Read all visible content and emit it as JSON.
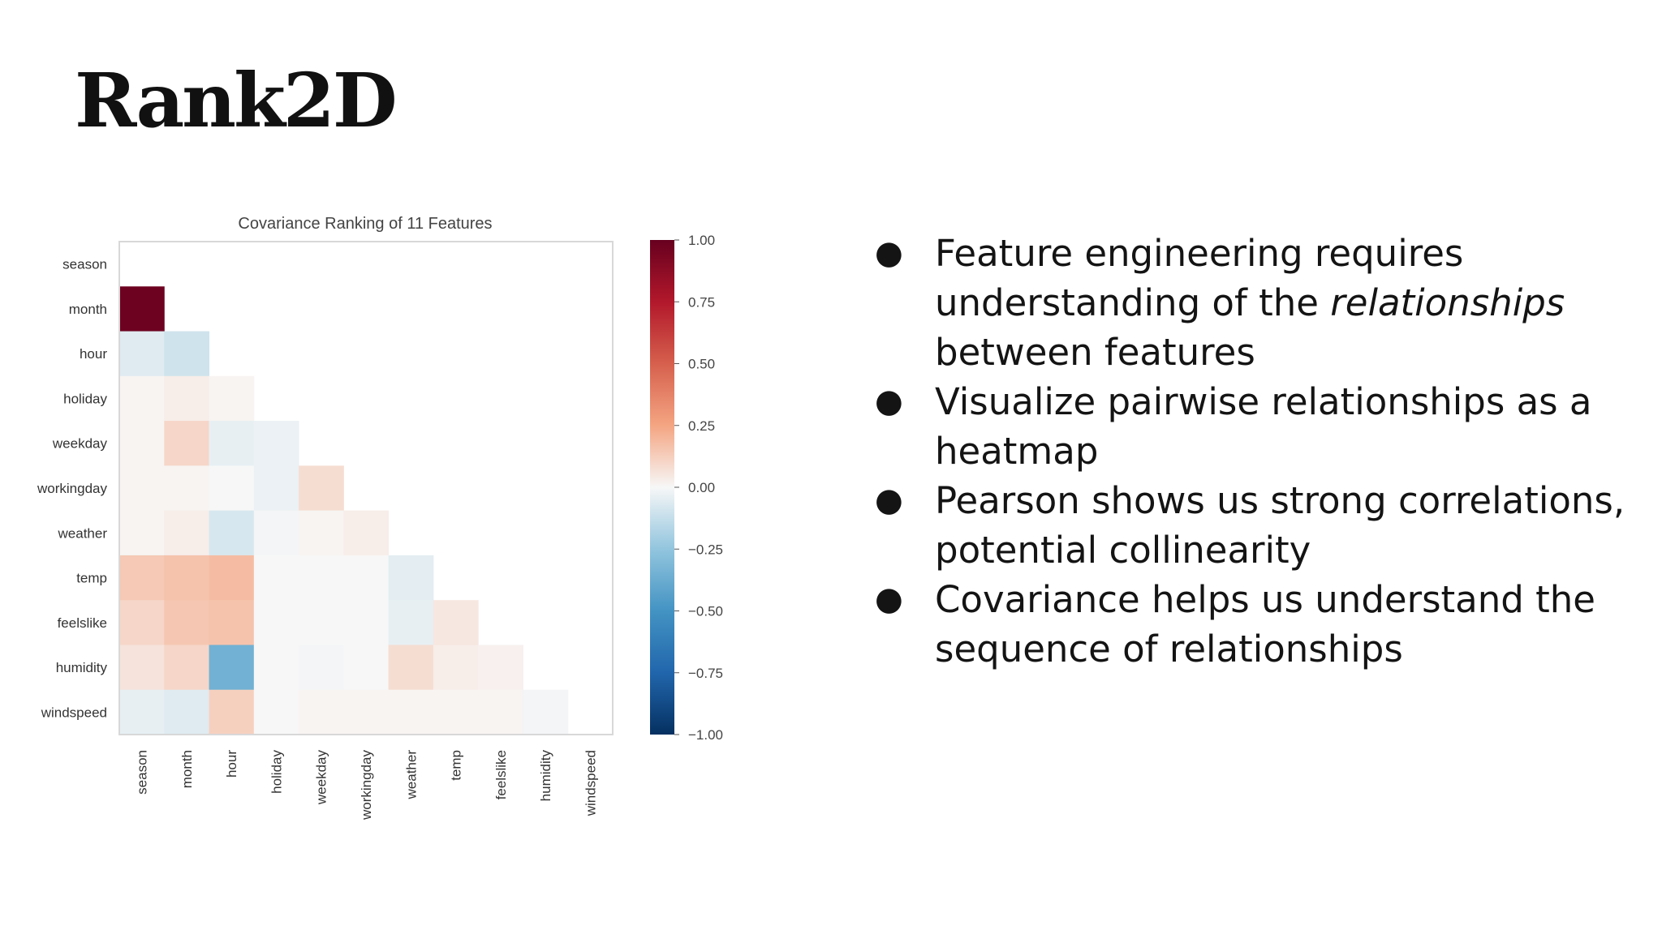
{
  "slide": {
    "title": "Rank2D"
  },
  "bullets": [
    {
      "pre": "Feature engineering requires understanding of the ",
      "em": "relationships",
      "post": " between features"
    },
    {
      "pre": "Visualize pairwise relationships as a heatmap",
      "em": "",
      "post": ""
    },
    {
      "pre": "Pearson shows us strong correlations, potential collinearity",
      "em": "",
      "post": ""
    },
    {
      "pre": "Covariance helps us understand the sequence of relationships",
      "em": "",
      "post": ""
    }
  ],
  "chart_data": {
    "type": "heatmap",
    "title": "Covariance Ranking of 11 Features",
    "features": [
      "season",
      "month",
      "hour",
      "holiday",
      "weekday",
      "workingday",
      "weather",
      "temp",
      "feelslike",
      "humidity",
      "windspeed"
    ],
    "lower_triangle_values": [
      [],
      [
        0.98
      ],
      [
        -0.06,
        -0.1
      ],
      [
        0.01,
        0.03,
        0.01
      ],
      [
        0.01,
        0.1,
        -0.04,
        -0.03
      ],
      [
        0.01,
        0.01,
        0.0,
        -0.03,
        0.08
      ],
      [
        0.01,
        0.03,
        -0.08,
        -0.01,
        0.01,
        0.03
      ],
      [
        0.14,
        0.16,
        0.18,
        0.0,
        0.0,
        0.0,
        -0.05
      ],
      [
        0.1,
        0.15,
        0.16,
        0.0,
        0.0,
        0.0,
        -0.04,
        0.05
      ],
      [
        0.06,
        0.1,
        -0.35,
        0.0,
        -0.01,
        0.0,
        0.08,
        0.03,
        0.02
      ],
      [
        -0.04,
        -0.06,
        0.12,
        0.0,
        0.01,
        0.01,
        0.01,
        0.01,
        0.01,
        -0.01
      ]
    ],
    "colorbar": {
      "range": [
        -1.0,
        1.0
      ],
      "ticks": [
        "1.00",
        "0.75",
        "0.50",
        "0.25",
        "0.00",
        "−0.25",
        "−0.50",
        "−0.75",
        "−1.00"
      ],
      "colors": {
        "max": "#67001f",
        "mid": "#f7f7f7",
        "min": "#053061"
      }
    },
    "grid": false
  }
}
